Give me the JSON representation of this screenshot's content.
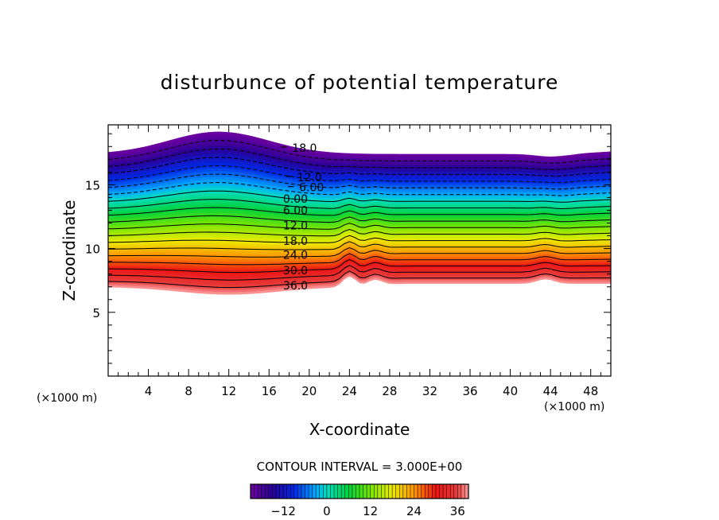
{
  "chart_data": {
    "type": "contour",
    "title": "disturbunce of potential temperature",
    "xlabel": "X-coordinate",
    "ylabel": "Z-coordinate",
    "x_unit": "(×1000 m)",
    "x_unit_right": "(×1000 m)",
    "xlim": [
      0,
      50
    ],
    "ylim": [
      0,
      19.7
    ],
    "x_ticks": [
      4,
      8,
      12,
      16,
      20,
      24,
      28,
      32,
      36,
      40,
      44,
      48
    ],
    "y_ticks": [
      5,
      10,
      15
    ],
    "contour_interval_text": "CONTOUR INTERVAL = 3.000E+00",
    "contour_interval": 3,
    "contour_labels": [
      {
        "text": "18.0",
        "x": 18.3,
        "z": 17.9,
        "negative": true
      },
      {
        "text": "12.0",
        "x": 18.8,
        "z": 15.6,
        "negative": true
      },
      {
        "text": "6.00",
        "x": 19.0,
        "z": 14.8,
        "negative": true
      },
      {
        "text": "0.00",
        "x": 17.4,
        "z": 13.9,
        "negative": false
      },
      {
        "text": "6.00",
        "x": 17.4,
        "z": 13.0,
        "negative": false
      },
      {
        "text": "12.0",
        "x": 17.4,
        "z": 11.8,
        "negative": false
      },
      {
        "text": "18.0",
        "x": 17.4,
        "z": 10.6,
        "negative": false
      },
      {
        "text": "24.0",
        "x": 17.4,
        "z": 9.5,
        "negative": false
      },
      {
        "text": "30.0",
        "x": 17.4,
        "z": 8.3,
        "negative": false
      },
      {
        "text": "36.0",
        "x": 17.4,
        "z": 7.1,
        "negative": false
      }
    ],
    "colorbar": {
      "range": [
        -21,
        39
      ],
      "tick_values": [
        -12,
        0,
        12,
        24,
        36
      ],
      "tick_labels": [
        "−12",
        "0",
        "12",
        "24",
        "36"
      ]
    }
  }
}
